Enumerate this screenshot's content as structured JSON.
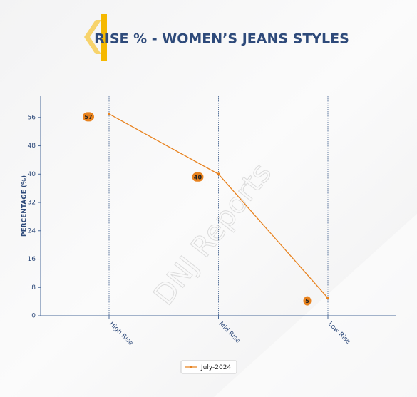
{
  "chart_data": {
    "type": "line",
    "title": "RISE % - WOMEN’S JEANS STYLES",
    "ylabel": "PERCENTAGE (%)",
    "watermark": "DNJ Reports",
    "categories": [
      "High Rise",
      "Mid Rise",
      "Low Rise"
    ],
    "series": [
      {
        "name": "July-2024",
        "color": "#e8821e",
        "values": [
          57,
          40,
          5
        ]
      }
    ],
    "ylim": [
      0,
      62
    ],
    "yticks": [
      0,
      8,
      16,
      24,
      32,
      40,
      48,
      56
    ],
    "xgrid": true,
    "legend": "bottom"
  }
}
